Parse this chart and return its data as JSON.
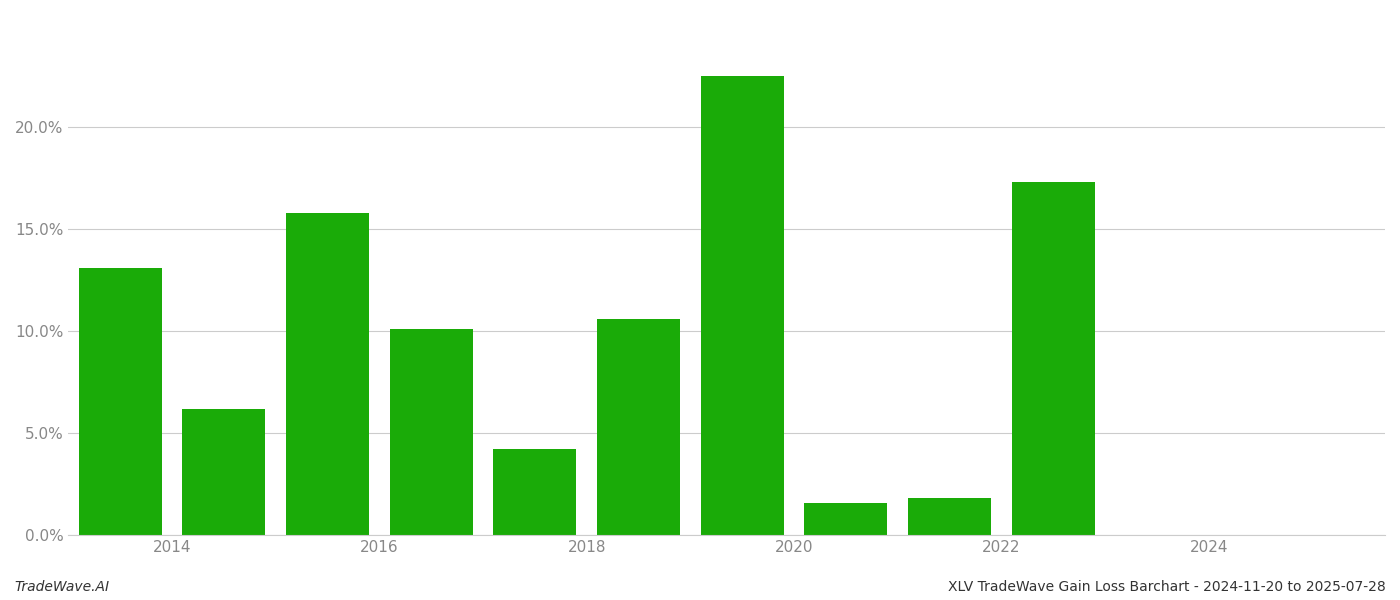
{
  "years": [
    2013,
    2014,
    2015,
    2016,
    2017,
    2018,
    2019,
    2020,
    2021,
    2022,
    2023,
    2024
  ],
  "values": [
    0.131,
    0.062,
    0.158,
    0.101,
    0.042,
    0.106,
    0.225,
    0.016,
    0.018,
    0.173,
    0.0,
    0.0
  ],
  "bar_color": "#1aab08",
  "background_color": "#ffffff",
  "grid_color": "#cccccc",
  "ylabel_color": "#888888",
  "xlabel_color": "#888888",
  "ylim": [
    0,
    0.255
  ],
  "yticks": [
    0.0,
    0.05,
    0.1,
    0.15,
    0.2
  ],
  "xtick_labels": [
    "2014",
    "2016",
    "2018",
    "2020",
    "2022",
    "2024"
  ],
  "xtick_positions": [
    2013.5,
    2015.5,
    2017.5,
    2019.5,
    2021.5,
    2023.5
  ],
  "footer_left": "TradeWave.AI",
  "footer_right": "XLV TradeWave Gain Loss Barchart - 2024-11-20 to 2025-07-28",
  "bar_width": 0.8
}
